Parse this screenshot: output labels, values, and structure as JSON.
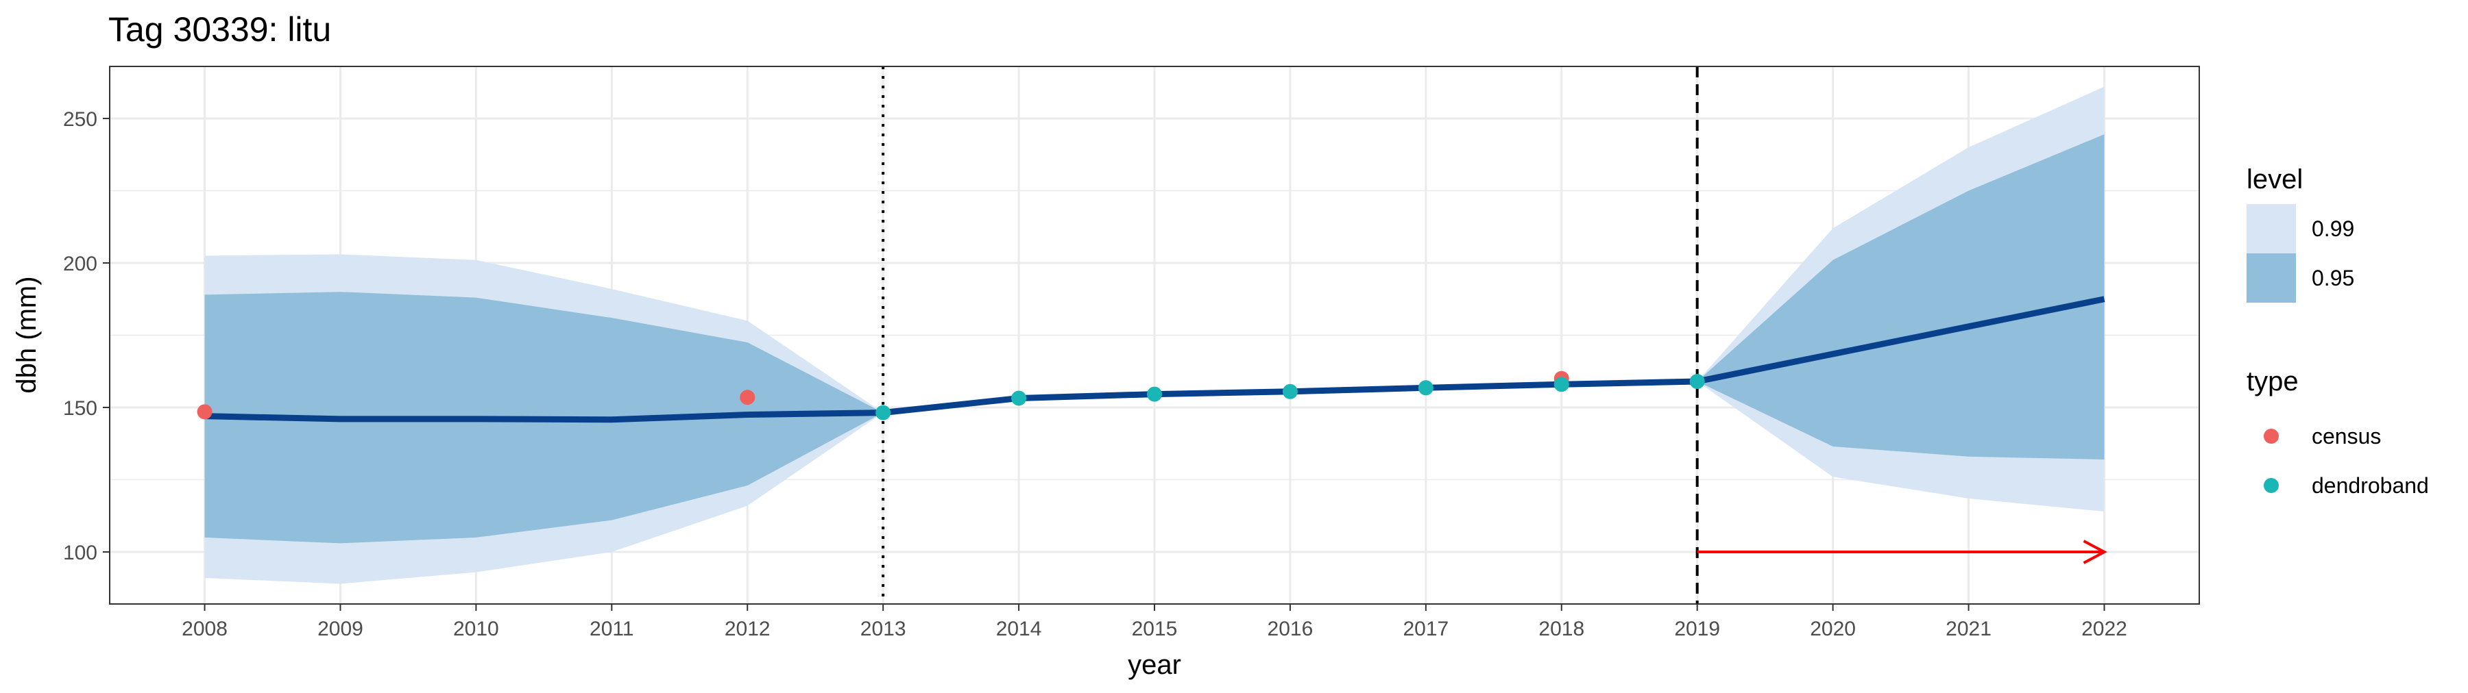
{
  "chart_data": {
    "type": "line",
    "title": "Tag 30339: litu",
    "xlabel": "year",
    "ylabel": "dbh (mm)",
    "xlim": [
      2007.3,
      2022.7
    ],
    "ylim": [
      82,
      268
    ],
    "x_ticks": [
      2008,
      2009,
      2010,
      2011,
      2012,
      2013,
      2014,
      2015,
      2016,
      2017,
      2018,
      2019,
      2020,
      2021,
      2022
    ],
    "y_ticks": [
      100,
      150,
      200,
      250
    ],
    "grid": true,
    "series": [
      {
        "name": "",
        "style": "line",
        "color": "#08408c",
        "x": [
          2008,
          2009,
          2010,
          2011,
          2012,
          2013,
          2014,
          2015,
          2016,
          2017,
          2018,
          2019,
          2020,
          2021,
          2022
        ],
        "y": [
          147,
          146,
          146,
          145.8,
          147.5,
          148.2,
          153.2,
          154.6,
          155.5,
          156.8,
          158,
          159,
          168.5,
          178,
          187.5
        ]
      }
    ],
    "ribbons": [
      {
        "level": "0.99",
        "color": "#d7e5f4",
        "x": [
          2008,
          2009,
          2010,
          2011,
          2012,
          2013,
          2014,
          2015,
          2016,
          2017,
          2018,
          2019,
          2020,
          2021,
          2022
        ],
        "lower": [
          91,
          89,
          93,
          100,
          116,
          148.2,
          153.2,
          154.6,
          155.5,
          156.8,
          158,
          159,
          126,
          118.5,
          114
        ],
        "upper": [
          202.5,
          203,
          201,
          191,
          180,
          148.2,
          153.2,
          154.6,
          155.5,
          156.8,
          158,
          159,
          212,
          240,
          261
        ]
      },
      {
        "level": "0.95",
        "color": "#91bedb",
        "x": [
          2008,
          2009,
          2010,
          2011,
          2012,
          2013,
          2014,
          2015,
          2016,
          2017,
          2018,
          2019,
          2020,
          2021,
          2022
        ],
        "lower": [
          105,
          103,
          105,
          111,
          123,
          148.2,
          153.2,
          154.6,
          155.5,
          156.8,
          158,
          159,
          136.5,
          133,
          132
        ],
        "upper": [
          189,
          190,
          188,
          181,
          172.5,
          148.2,
          153.2,
          154.6,
          155.5,
          156.8,
          158,
          159,
          201,
          225,
          244.5
        ]
      }
    ],
    "points": [
      {
        "type": "census",
        "color": "#ef5f5b",
        "x": [
          2008,
          2012,
          2018
        ],
        "y": [
          148.5,
          153.5,
          160
        ]
      },
      {
        "type": "dendroband",
        "color": "#1ab5b5",
        "x": [
          2013,
          2014,
          2015,
          2016,
          2017,
          2018,
          2019
        ],
        "y": [
          148.2,
          153.2,
          154.6,
          155.5,
          156.8,
          158,
          159
        ]
      }
    ],
    "vlines": [
      {
        "x": 2013,
        "style": "dotted",
        "color": "#000000"
      },
      {
        "x": 2019,
        "style": "dashed",
        "color": "#000000"
      }
    ],
    "annotations": [
      {
        "kind": "arrow",
        "color": "#ff0000",
        "x_start": 2019,
        "x_end": 2022,
        "y": 100
      }
    ],
    "legend": {
      "placement": "right",
      "groups": [
        {
          "title": "level",
          "items": [
            {
              "label": "0.99",
              "color": "#d7e5f4"
            },
            {
              "label": "0.95",
              "color": "#91bedb"
            }
          ]
        },
        {
          "title": "type",
          "items": [
            {
              "label": "census",
              "color": "#ef5f5b"
            },
            {
              "label": "dendroband",
              "color": "#1ab5b5"
            }
          ]
        }
      ]
    }
  }
}
